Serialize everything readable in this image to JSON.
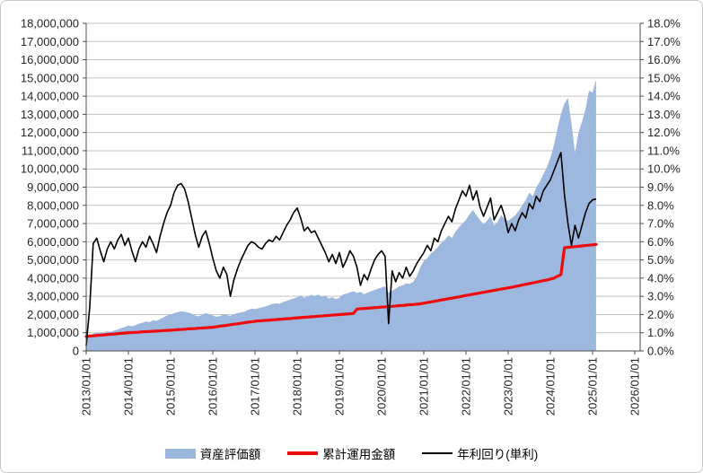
{
  "chart_data": {
    "type": "combo (area + 2 lines)",
    "x_start": "2013/01",
    "x_step_months": 1,
    "grid": "horizontal",
    "colors": {
      "area_fill": "#9db8df",
      "invested_line": "#ee0b0b",
      "yield_line": "#000000",
      "gridline": "#c3c3c3",
      "axis_line": "#4d4d4d",
      "tick_text": "#262626"
    },
    "left_axis": {
      "min": 0,
      "max": 18000000,
      "step": 1000000,
      "tick_labels": [
        "18,000,000",
        "17,000,000",
        "16,000,000",
        "15,000,000",
        "14,000,000",
        "13,000,000",
        "12,000,000",
        "11,000,000",
        "10,000,000",
        "9,000,000",
        "8,000,000",
        "7,000,000",
        "6,000,000",
        "5,000,000",
        "4,000,000",
        "3,000,000",
        "2,000,000",
        "1,000,000",
        "0"
      ]
    },
    "right_axis": {
      "min": 0,
      "max": 0.18,
      "step": 0.01,
      "tick_labels": [
        "18.0%",
        "17.0%",
        "16.0%",
        "15.0%",
        "14.0%",
        "13.0%",
        "12.0%",
        "11.0%",
        "10.0%",
        "9.0%",
        "8.0%",
        "7.0%",
        "6.0%",
        "5.0%",
        "4.0%",
        "3.0%",
        "2.0%",
        "1.0%",
        "0.0%"
      ]
    },
    "x_axis": {
      "tick_labels": [
        "2013/01/01",
        "2014/01/01",
        "2015/01/01",
        "2016/01/01",
        "2017/01/01",
        "2018/01/01",
        "2019/01/01",
        "2020/01/01",
        "2021/01/01",
        "2022/01/01",
        "2023/01/01",
        "2024/01/01",
        "2025/01/01",
        "2026/01/01"
      ]
    },
    "legend": {
      "position": "bottom",
      "entries": [
        "資産評価額",
        "累計運用金額",
        "年利回り(単利)"
      ]
    },
    "series": [
      {
        "name": "資産評価額",
        "type": "area",
        "axis": "left",
        "unit": "million_yen",
        "values": [
          0.82,
          0.86,
          0.95,
          1.0,
          0.97,
          1.02,
          1.08,
          1.05,
          1.12,
          1.18,
          1.25,
          1.32,
          1.4,
          1.35,
          1.42,
          1.5,
          1.55,
          1.62,
          1.58,
          1.68,
          1.65,
          1.75,
          1.85,
          1.95,
          2.0,
          2.08,
          2.12,
          2.18,
          2.15,
          2.1,
          2.05,
          1.95,
          1.9,
          2.0,
          2.08,
          2.02,
          1.95,
          1.88,
          1.92,
          2.0,
          1.97,
          1.93,
          2.02,
          2.08,
          2.12,
          2.15,
          2.25,
          2.32,
          2.3,
          2.35,
          2.4,
          2.45,
          2.52,
          2.58,
          2.62,
          2.58,
          2.68,
          2.75,
          2.82,
          2.88,
          2.95,
          3.05,
          2.92,
          3.0,
          3.08,
          3.02,
          3.1,
          2.98,
          3.05,
          2.88,
          2.95,
          2.85,
          2.92,
          3.1,
          3.15,
          3.22,
          3.28,
          3.18,
          3.25,
          3.12,
          3.2,
          3.28,
          3.35,
          3.42,
          3.48,
          3.55,
          3.2,
          3.3,
          3.42,
          3.55,
          3.6,
          3.72,
          3.68,
          3.8,
          4.1,
          4.6,
          4.95,
          5.1,
          5.35,
          5.5,
          5.7,
          5.95,
          6.1,
          6.35,
          6.2,
          6.55,
          6.8,
          7.0,
          7.2,
          7.5,
          7.75,
          7.45,
          7.2,
          6.95,
          7.15,
          7.4,
          6.9,
          7.1,
          7.45,
          7.25,
          7.15,
          7.3,
          7.45,
          7.7,
          8.0,
          8.3,
          8.7,
          8.5,
          9.0,
          9.3,
          9.7,
          10.1,
          10.6,
          11.3,
          12.2,
          13.0,
          13.6,
          13.9,
          12.5,
          10.9,
          12.0,
          12.6,
          13.3,
          14.3,
          14.2,
          14.9
        ]
      },
      {
        "name": "累計運用金額",
        "type": "line",
        "axis": "left",
        "unit": "million_yen",
        "values": [
          0.8,
          0.82,
          0.83,
          0.85,
          0.87,
          0.88,
          0.9,
          0.92,
          0.93,
          0.95,
          0.97,
          0.98,
          1.0,
          1.01,
          1.02,
          1.03,
          1.05,
          1.06,
          1.07,
          1.08,
          1.09,
          1.1,
          1.12,
          1.13,
          1.14,
          1.15,
          1.17,
          1.18,
          1.19,
          1.21,
          1.22,
          1.23,
          1.25,
          1.26,
          1.27,
          1.29,
          1.3,
          1.33,
          1.36,
          1.38,
          1.41,
          1.44,
          1.47,
          1.49,
          1.52,
          1.55,
          1.58,
          1.6,
          1.63,
          1.65,
          1.66,
          1.68,
          1.69,
          1.71,
          1.72,
          1.74,
          1.75,
          1.77,
          1.78,
          1.8,
          1.82,
          1.83,
          1.85,
          1.86,
          1.88,
          1.89,
          1.91,
          1.92,
          1.94,
          1.95,
          1.97,
          1.98,
          2.0,
          2.01,
          2.03,
          2.04,
          2.06,
          2.3,
          2.32,
          2.33,
          2.35,
          2.36,
          2.38,
          2.39,
          2.41,
          2.42,
          2.44,
          2.45,
          2.47,
          2.49,
          2.5,
          2.52,
          2.54,
          2.55,
          2.57,
          2.59,
          2.62,
          2.66,
          2.69,
          2.73,
          2.76,
          2.8,
          2.83,
          2.87,
          2.9,
          2.94,
          2.97,
          3.01,
          3.05,
          3.08,
          3.12,
          3.15,
          3.19,
          3.22,
          3.26,
          3.29,
          3.33,
          3.36,
          3.4,
          3.43,
          3.47,
          3.5,
          3.54,
          3.58,
          3.62,
          3.66,
          3.7,
          3.74,
          3.78,
          3.82,
          3.86,
          3.9,
          3.95,
          4.0,
          4.1,
          4.19,
          5.67,
          5.69,
          5.71,
          5.73,
          5.75,
          5.77,
          5.79,
          5.81,
          5.83,
          5.85
        ]
      },
      {
        "name": "年利回り(単利)",
        "type": "line",
        "axis": "right",
        "unit": "percent",
        "values": [
          0.3,
          2.4,
          5.9,
          6.2,
          5.5,
          4.9,
          5.6,
          6.0,
          5.6,
          6.1,
          6.4,
          5.8,
          6.2,
          5.5,
          4.9,
          5.6,
          6.0,
          5.7,
          6.3,
          5.9,
          5.4,
          6.3,
          7.0,
          7.6,
          8.0,
          8.7,
          9.1,
          9.2,
          8.9,
          8.2,
          7.3,
          6.4,
          5.7,
          6.3,
          6.6,
          5.9,
          5.1,
          4.4,
          4.0,
          4.6,
          4.2,
          3.0,
          3.9,
          4.5,
          5.0,
          5.4,
          5.8,
          6.0,
          5.9,
          5.7,
          5.6,
          5.9,
          6.1,
          6.0,
          6.3,
          6.1,
          6.5,
          6.9,
          7.2,
          7.6,
          7.85,
          7.3,
          6.6,
          6.8,
          6.5,
          6.6,
          6.2,
          5.8,
          5.4,
          4.9,
          5.3,
          4.8,
          5.4,
          4.6,
          5.0,
          5.5,
          5.2,
          4.6,
          3.6,
          4.2,
          3.9,
          4.5,
          5.0,
          5.3,
          5.5,
          5.2,
          1.5,
          4.4,
          3.8,
          4.3,
          4.0,
          4.6,
          4.1,
          4.4,
          4.8,
          5.1,
          5.4,
          5.8,
          5.5,
          6.2,
          6.0,
          6.6,
          7.0,
          7.4,
          7.1,
          7.8,
          8.3,
          8.8,
          8.5,
          9.1,
          8.3,
          8.8,
          7.9,
          7.4,
          7.9,
          8.4,
          7.2,
          7.6,
          8.0,
          7.4,
          6.5,
          7.0,
          6.6,
          7.2,
          7.6,
          7.3,
          8.1,
          7.8,
          8.5,
          8.2,
          8.8,
          9.1,
          9.4,
          9.9,
          10.4,
          10.9,
          8.6,
          7.0,
          5.8,
          6.9,
          6.2,
          6.9,
          7.6,
          8.1,
          8.3,
          8.35
        ]
      }
    ]
  }
}
